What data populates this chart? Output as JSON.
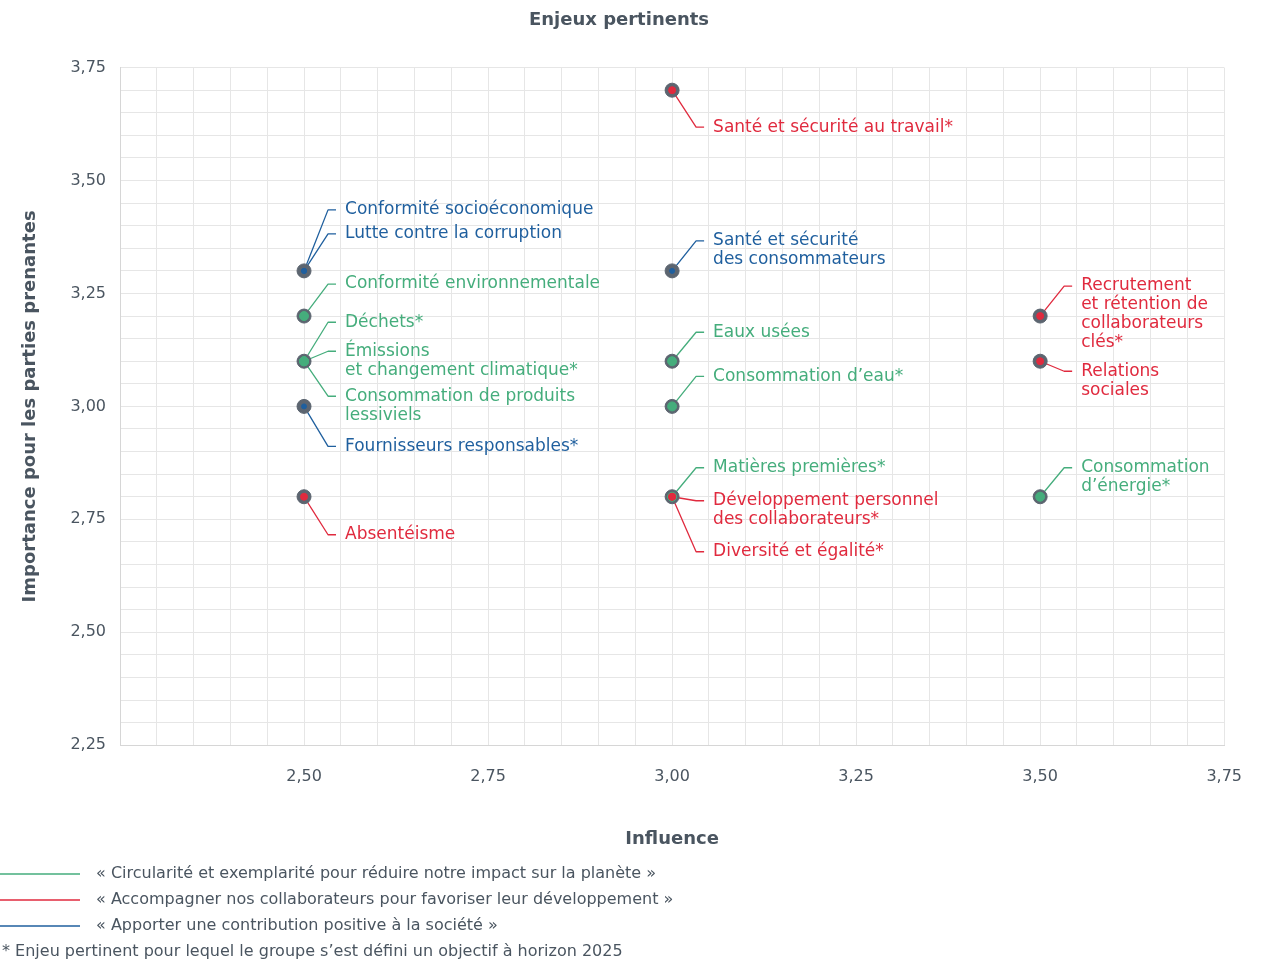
{
  "chart_data": {
    "type": "scatter",
    "title": "Enjeux pertinents",
    "xlabel": "Influence",
    "ylabel": "Importance pour les parties prenantes",
    "xlim": [
      2.25,
      3.75
    ],
    "ylim": [
      2.25,
      3.75
    ],
    "xticks": [
      {
        "value": 2.25,
        "label": null
      },
      {
        "value": 2.3,
        "label": null
      },
      {
        "value": 2.35,
        "label": null
      },
      {
        "value": 2.4,
        "label": null
      },
      {
        "value": 2.45,
        "label": null
      },
      {
        "value": 2.5,
        "label": "2,50"
      },
      {
        "value": 2.55,
        "label": null
      },
      {
        "value": 2.6,
        "label": null
      },
      {
        "value": 2.65,
        "label": null
      },
      {
        "value": 2.7,
        "label": null
      },
      {
        "value": 2.75,
        "label": "2,75"
      },
      {
        "value": 2.8,
        "label": null
      },
      {
        "value": 2.85,
        "label": null
      },
      {
        "value": 2.9,
        "label": null
      },
      {
        "value": 2.95,
        "label": null
      },
      {
        "value": 3.0,
        "label": "3,00"
      },
      {
        "value": 3.05,
        "label": null
      },
      {
        "value": 3.1,
        "label": null
      },
      {
        "value": 3.15,
        "label": null
      },
      {
        "value": 3.2,
        "label": null
      },
      {
        "value": 3.25,
        "label": "3,25"
      },
      {
        "value": 3.3,
        "label": null
      },
      {
        "value": 3.35,
        "label": null
      },
      {
        "value": 3.4,
        "label": null
      },
      {
        "value": 3.45,
        "label": null
      },
      {
        "value": 3.5,
        "label": "3,50"
      },
      {
        "value": 3.55,
        "label": null
      },
      {
        "value": 3.6,
        "label": null
      },
      {
        "value": 3.65,
        "label": null
      },
      {
        "value": 3.7,
        "label": null
      },
      {
        "value": 3.75,
        "label": "3,75"
      }
    ],
    "yticks": [
      {
        "value": 2.25,
        "label": "2,25"
      },
      {
        "value": 2.3,
        "label": null
      },
      {
        "value": 2.35,
        "label": null
      },
      {
        "value": 2.4,
        "label": null
      },
      {
        "value": 2.45,
        "label": null
      },
      {
        "value": 2.5,
        "label": "2,50"
      },
      {
        "value": 2.55,
        "label": null
      },
      {
        "value": 2.6,
        "label": null
      },
      {
        "value": 2.65,
        "label": null
      },
      {
        "value": 2.7,
        "label": null
      },
      {
        "value": 2.75,
        "label": "2,75"
      },
      {
        "value": 2.8,
        "label": null
      },
      {
        "value": 2.85,
        "label": null
      },
      {
        "value": 2.9,
        "label": null
      },
      {
        "value": 2.95,
        "label": null
      },
      {
        "value": 3.0,
        "label": "3,00"
      },
      {
        "value": 3.05,
        "label": null
      },
      {
        "value": 3.1,
        "label": null
      },
      {
        "value": 3.15,
        "label": null
      },
      {
        "value": 3.2,
        "label": null
      },
      {
        "value": 3.25,
        "label": "3,25"
      },
      {
        "value": 3.3,
        "label": null
      },
      {
        "value": 3.35,
        "label": null
      },
      {
        "value": 3.4,
        "label": null
      },
      {
        "value": 3.45,
        "label": null
      },
      {
        "value": 3.5,
        "label": "3,50"
      },
      {
        "value": 3.55,
        "label": null
      },
      {
        "value": 3.6,
        "label": null
      },
      {
        "value": 3.65,
        "label": null
      },
      {
        "value": 3.7,
        "label": null
      },
      {
        "value": 3.75,
        "label": "3,75"
      }
    ],
    "grid": true,
    "legend": "bottom left",
    "series": [
      {
        "color": "#5c6570",
        "marker": "circle",
        "x": [
          2.5,
          2.5,
          2.5,
          2.5,
          2.5,
          3.0,
          3.0,
          3.0,
          3.0,
          3.0,
          3.5,
          3.5,
          3.5
        ],
        "values": [
          3.3,
          3.2,
          3.1,
          3.0,
          2.8,
          3.7,
          3.3,
          3.1,
          3.0,
          2.8,
          3.2,
          3.1,
          2.8
        ]
      },
      {
        "name": "« Circularité et exemplarité pour réduire notre impact sur la planète »",
        "color": "#45ad7c",
        "marker": "circle",
        "x": [
          2.5,
          2.5,
          2.5,
          2.5,
          3.0,
          3.0,
          3.0,
          3.5
        ],
        "values": [
          3.2,
          3.1,
          3.1,
          3.1,
          3.1,
          3.0,
          2.8,
          2.8
        ],
        "value_labels": [
          "Conformité environnementale",
          "Déchets*",
          "Émissions\net changement climatique*",
          "Consommation de produits\nlessiviels",
          "Eaux usées",
          "Consommation d’eau*",
          "Matières premières*",
          "Consommation\nd’énergie*"
        ]
      },
      {
        "name": "« Accompagner nos collaborateurs pour favoriser leur développement »",
        "color": "#e02a3e",
        "marker": "circle",
        "x": [
          2.5,
          3.0,
          3.0,
          3.0,
          3.5,
          3.5
        ],
        "values": [
          2.8,
          3.7,
          2.8,
          2.8,
          3.2,
          3.1
        ],
        "value_labels": [
          "Absentéisme",
          "Santé et sécurité au travail*",
          "Développement personnel\ndes collaborateurs*",
          "Diversité et égalité*",
          "Recrutement\net rétention de\ncollaborateurs\nclés*",
          "Relations\nsociales"
        ]
      },
      {
        "name": "« Apporter une contribution positive à la société »",
        "color": "#1f5f9e",
        "marker": "circle",
        "x": [
          2.5,
          2.5,
          2.5,
          3.0
        ],
        "values": [
          3.3,
          3.3,
          3.0,
          3.3
        ],
        "value_labels": [
          "Conformité socioéconomique",
          "Lutte contre la corruption",
          "Fournisseurs responsables*",
          "Santé et sécurité\ndes consommateurs"
        ]
      }
    ],
    "annotations": [
      "* Enjeu pertinent pour lequel le groupe s’est défini un objectif à horizon 2025"
    ]
  }
}
